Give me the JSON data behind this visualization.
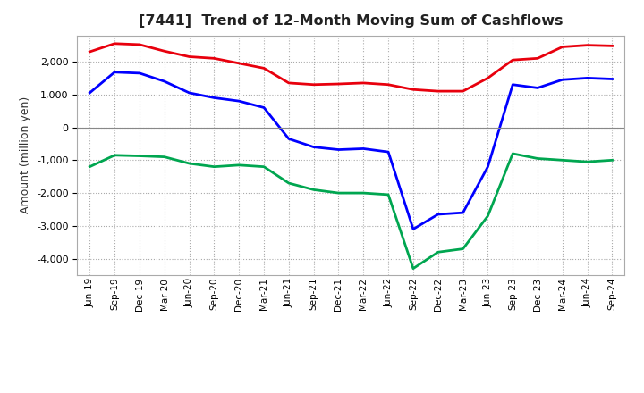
{
  "title": "[7441]  Trend of 12-Month Moving Sum of Cashflows",
  "ylabel": "Amount (million yen)",
  "x_labels": [
    "Jun-19",
    "Sep-19",
    "Dec-19",
    "Mar-20",
    "Jun-20",
    "Sep-20",
    "Dec-20",
    "Mar-21",
    "Jun-21",
    "Sep-21",
    "Dec-21",
    "Mar-22",
    "Jun-22",
    "Sep-22",
    "Dec-22",
    "Mar-23",
    "Jun-23",
    "Sep-23",
    "Dec-23",
    "Mar-24",
    "Jun-24",
    "Sep-24"
  ],
  "operating_cashflow": [
    2300,
    2550,
    2520,
    2320,
    2150,
    2100,
    1950,
    1800,
    1350,
    1300,
    1320,
    1350,
    1300,
    1150,
    1100,
    1100,
    1500,
    2050,
    2100,
    2450,
    2500,
    2480
  ],
  "investing_cashflow": [
    -1200,
    -850,
    -870,
    -900,
    -1100,
    -1200,
    -1150,
    -1200,
    -1700,
    -1900,
    -2000,
    -2000,
    -2050,
    -4300,
    -3800,
    -3700,
    -2700,
    -800,
    -950,
    -1000,
    -1050,
    -1000
  ],
  "free_cashflow": [
    1050,
    1680,
    1650,
    1400,
    1050,
    900,
    800,
    600,
    -350,
    -600,
    -680,
    -650,
    -750,
    -3100,
    -2650,
    -2600,
    -1200,
    1300,
    1200,
    1450,
    1500,
    1470
  ],
  "operating_color": "#e8000d",
  "investing_color": "#00a650",
  "free_color": "#0000ff",
  "background_color": "#ffffff",
  "grid_color": "#aaaaaa",
  "ylim": [
    -4500,
    2800
  ],
  "yticks": [
    -4000,
    -3000,
    -2000,
    -1000,
    0,
    1000,
    2000
  ],
  "legend_text_color": "#555555"
}
